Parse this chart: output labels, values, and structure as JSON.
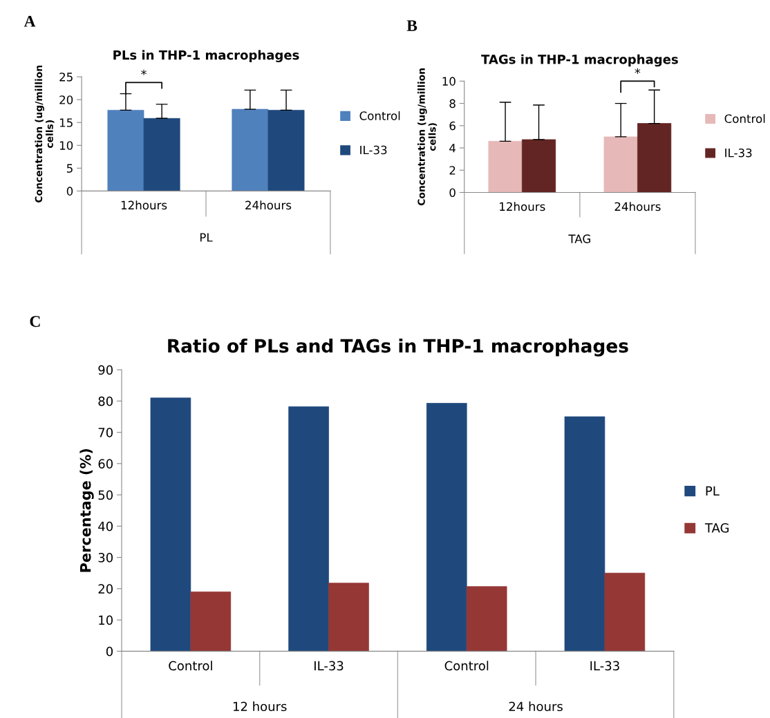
{
  "chart_data": [
    {
      "type": "bar",
      "title": "PLs in THP-1 macrophages",
      "ylabel": "Concentration (ug/million\ncells)",
      "xlabel": "PL",
      "categories": [
        "12hours",
        "24hours"
      ],
      "series": [
        {
          "name": "Control",
          "color": "#4f81bd",
          "values": [
            17.7,
            17.9
          ],
          "errors": [
            [
              17.7,
              21.3
            ],
            [
              17.9,
              22.1
            ]
          ]
        },
        {
          "name": "IL-33",
          "color": "#1f497d",
          "values": [
            15.9,
            17.7
          ],
          "errors": [
            [
              15.9,
              19.0
            ],
            [
              17.7,
              22.1
            ]
          ]
        }
      ],
      "ylim": [
        0,
        25
      ],
      "yticks": [
        0,
        5,
        10,
        15,
        20,
        25
      ],
      "grid": false,
      "legend": "right",
      "annotations": [
        "A",
        "*"
      ]
    },
    {
      "type": "bar",
      "title": "TAGs in THP-1 macrophages",
      "ylabel": "Concentration (ug/million\ncells)",
      "xlabel": "TAG",
      "categories": [
        "12hours",
        "24hours"
      ],
      "series": [
        {
          "name": "Control",
          "color": "#e6b9b8",
          "values": [
            4.6,
            5.0
          ],
          "errors": [
            [
              4.6,
              8.1
            ],
            [
              5.0,
              8.0
            ]
          ]
        },
        {
          "name": "IL-33",
          "color": "#632523",
          "values": [
            4.75,
            6.2
          ],
          "errors": [
            [
              4.75,
              7.85
            ],
            [
              6.2,
              9.2
            ]
          ]
        }
      ],
      "ylim": [
        0,
        10
      ],
      "yticks": [
        0,
        2,
        4,
        6,
        8,
        10
      ],
      "grid": false,
      "legend": "right",
      "annotations": [
        "B",
        "*"
      ]
    },
    {
      "type": "bar",
      "title": "Ratio of PLs and TAGs in THP-1 macrophages",
      "ylabel": "Percentage (%)",
      "categories": [
        "Control",
        "IL-33",
        "Control",
        "IL-33"
      ],
      "series": [
        {
          "name": "PL",
          "color": "#1f497d",
          "values": [
            81,
            78.2,
            79.3,
            75
          ]
        },
        {
          "name": "TAG",
          "color": "#953735",
          "values": [
            19,
            21.8,
            20.7,
            25
          ]
        }
      ],
      "ylim": [
        0,
        90
      ],
      "yticks": [
        0,
        10,
        20,
        30,
        40,
        50,
        60,
        70,
        80,
        90
      ],
      "grid": false,
      "legend": "right",
      "annotations": [
        "C",
        "12 hours",
        "24 hours"
      ]
    }
  ]
}
